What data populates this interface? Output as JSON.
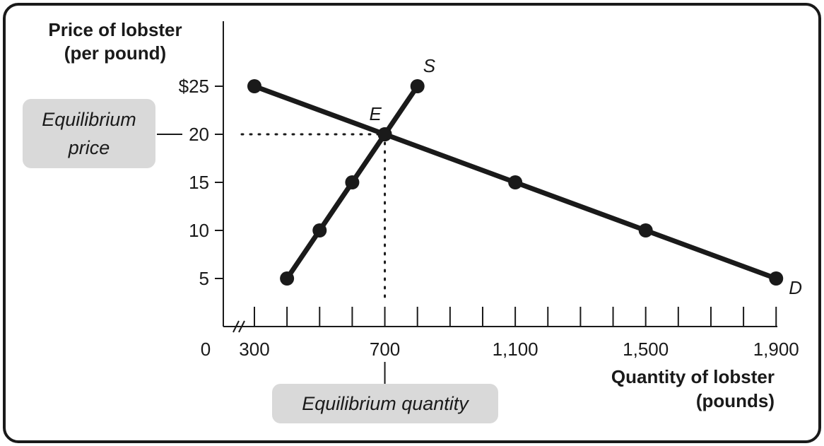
{
  "chart_data": {
    "type": "line",
    "ylabel": [
      "Price of lobster",
      "(per pound)"
    ],
    "xlabel": [
      "Quantity of lobster",
      "(pounds)"
    ],
    "xlim": [
      300,
      1900
    ],
    "ylim": [
      0,
      25
    ],
    "x_tick_labels": [
      {
        "value": 300,
        "label": "300"
      },
      {
        "value": 700,
        "label": "700"
      },
      {
        "value": 1100,
        "label": "1,100"
      },
      {
        "value": 1500,
        "label": "1,500"
      },
      {
        "value": 1900,
        "label": "1,900"
      }
    ],
    "x_minor_ticks": [
      300,
      400,
      500,
      600,
      700,
      800,
      900,
      1000,
      1100,
      1200,
      1300,
      1400,
      1500,
      1600,
      1700,
      1800,
      1900
    ],
    "origin_label": "0",
    "y_tick_labels": [
      {
        "value": 25,
        "label": "$25"
      },
      {
        "value": 20,
        "label": "20"
      },
      {
        "value": 15,
        "label": "15"
      },
      {
        "value": 10,
        "label": "10"
      },
      {
        "value": 5,
        "label": "5"
      }
    ],
    "series": [
      {
        "name": "S",
        "points": [
          [
            400,
            5
          ],
          [
            500,
            10
          ],
          [
            600,
            15
          ],
          [
            700,
            20
          ],
          [
            800,
            25
          ]
        ]
      },
      {
        "name": "D",
        "points": [
          [
            300,
            25
          ],
          [
            700,
            20
          ],
          [
            1100,
            15
          ],
          [
            1500,
            10
          ],
          [
            1900,
            5
          ]
        ]
      }
    ],
    "equilibrium": {
      "label": "E",
      "x": 700,
      "y": 20
    },
    "annotations": {
      "equilibrium_price": "Equilibrium price",
      "equilibrium_quantity": "Equilibrium quantity"
    },
    "colors": {
      "line": "#1a1a1a",
      "callout_bg": "#d9d9d9"
    }
  }
}
